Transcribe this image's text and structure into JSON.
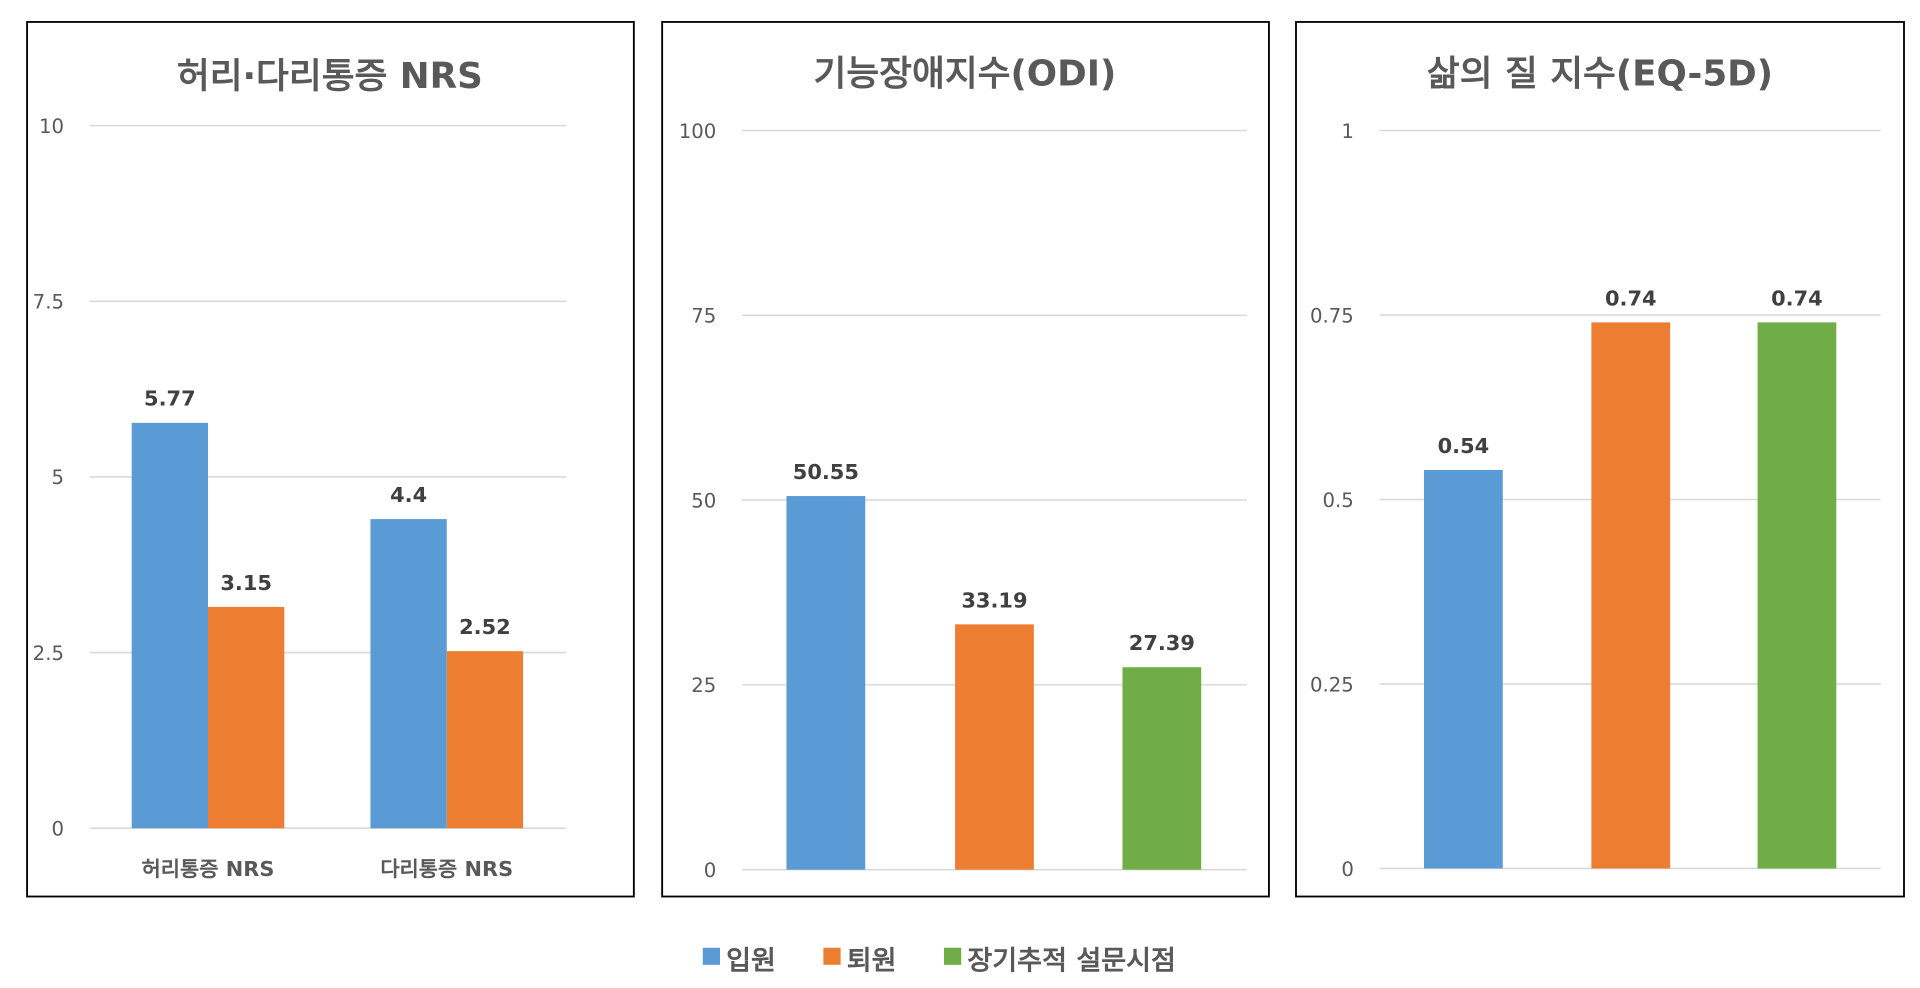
{
  "colors": {
    "입원": "#5B9BD5",
    "퇴원": "#ED7D31",
    "장기추적 설문시점": "#70AD47"
  },
  "legend": {
    "position": "bottom",
    "items": [
      "입원",
      "퇴원",
      "장기추적 설문시점"
    ]
  },
  "chart_data": [
    {
      "type": "bar",
      "title": "허리·다리통증 NRS",
      "categories": [
        "허리통증 NRS",
        "다리통증 NRS"
      ],
      "series": [
        {
          "name": "입원",
          "values": [
            5.77,
            4.4
          ]
        },
        {
          "name": "퇴원",
          "values": [
            3.15,
            2.52
          ]
        }
      ],
      "ylim": [
        0,
        10
      ],
      "yticks": [
        "0",
        "2.5",
        "5",
        "7.5",
        "10"
      ],
      "grid": true
    },
    {
      "type": "bar",
      "title": "기능장애지수(ODI)",
      "categories": [
        ""
      ],
      "series": [
        {
          "name": "입원",
          "values": [
            50.55
          ]
        },
        {
          "name": "퇴원",
          "values": [
            33.19
          ]
        },
        {
          "name": "장기추적 설문시점",
          "values": [
            27.39
          ]
        }
      ],
      "ylim": [
        0,
        100
      ],
      "yticks": [
        "0",
        "25",
        "50",
        "75",
        "100"
      ],
      "grid": true
    },
    {
      "type": "bar",
      "title": "삶의 질 지수(EQ-5D)",
      "categories": [
        ""
      ],
      "series": [
        {
          "name": "입원",
          "values": [
            0.54
          ]
        },
        {
          "name": "퇴원",
          "values": [
            0.74
          ]
        },
        {
          "name": "장기추적 설문시점",
          "values": [
            0.74
          ]
        }
      ],
      "ylim": [
        0,
        1
      ],
      "yticks": [
        "0",
        "0.25",
        "0.5",
        "0.75",
        "1"
      ],
      "grid": true
    }
  ]
}
